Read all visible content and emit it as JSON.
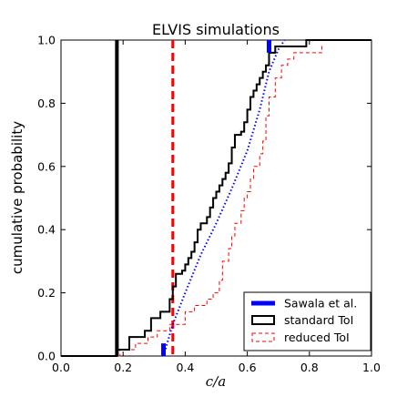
{
  "chart_data": {
    "type": "line",
    "title": "ELVIS simulations",
    "xlabel": "c/a",
    "ylabel": "cumulative probability",
    "xlim": [
      0.0,
      1.0
    ],
    "ylim": [
      0.0,
      1.0
    ],
    "xticks": [
      "0.0",
      "0.2",
      "0.4",
      "0.6",
      "0.8",
      "1.0"
    ],
    "yticks": [
      "0.0",
      "0.2",
      "0.4",
      "0.6",
      "0.8",
      "1.0"
    ],
    "grid": false,
    "legend_position": "bottom-right",
    "series": [
      {
        "name": "Sawala et al.",
        "color": "#0000ff",
        "style": "dotted",
        "points": [
          [
            0.33,
            0.0
          ],
          [
            0.36,
            0.1
          ],
          [
            0.4,
            0.2
          ],
          [
            0.45,
            0.32
          ],
          [
            0.5,
            0.42
          ],
          [
            0.55,
            0.53
          ],
          [
            0.6,
            0.65
          ],
          [
            0.64,
            0.78
          ],
          [
            0.67,
            0.9
          ],
          [
            0.7,
            0.97
          ],
          [
            0.72,
            1.0
          ]
        ]
      },
      {
        "name": "standard ToI",
        "color": "#000000",
        "style": "step-solid",
        "points": [
          [
            0.0,
            0.0
          ],
          [
            0.18,
            0.0
          ],
          [
            0.18,
            0.02
          ],
          [
            0.22,
            0.02
          ],
          [
            0.22,
            0.06
          ],
          [
            0.27,
            0.06
          ],
          [
            0.27,
            0.08
          ],
          [
            0.29,
            0.08
          ],
          [
            0.29,
            0.12
          ],
          [
            0.32,
            0.12
          ],
          [
            0.32,
            0.14
          ],
          [
            0.35,
            0.14
          ],
          [
            0.35,
            0.18
          ],
          [
            0.36,
            0.18
          ],
          [
            0.36,
            0.22
          ],
          [
            0.37,
            0.22
          ],
          [
            0.37,
            0.26
          ],
          [
            0.39,
            0.26
          ],
          [
            0.39,
            0.27
          ],
          [
            0.4,
            0.27
          ],
          [
            0.4,
            0.29
          ],
          [
            0.41,
            0.29
          ],
          [
            0.41,
            0.31
          ],
          [
            0.42,
            0.31
          ],
          [
            0.42,
            0.33
          ],
          [
            0.43,
            0.33
          ],
          [
            0.43,
            0.36
          ],
          [
            0.44,
            0.36
          ],
          [
            0.44,
            0.4
          ],
          [
            0.45,
            0.4
          ],
          [
            0.45,
            0.42
          ],
          [
            0.47,
            0.42
          ],
          [
            0.47,
            0.44
          ],
          [
            0.48,
            0.44
          ],
          [
            0.48,
            0.47
          ],
          [
            0.49,
            0.47
          ],
          [
            0.49,
            0.5
          ],
          [
            0.5,
            0.5
          ],
          [
            0.5,
            0.52
          ],
          [
            0.51,
            0.52
          ],
          [
            0.51,
            0.54
          ],
          [
            0.52,
            0.54
          ],
          [
            0.52,
            0.56
          ],
          [
            0.53,
            0.56
          ],
          [
            0.53,
            0.58
          ],
          [
            0.54,
            0.58
          ],
          [
            0.54,
            0.61
          ],
          [
            0.55,
            0.61
          ],
          [
            0.55,
            0.66
          ],
          [
            0.56,
            0.66
          ],
          [
            0.56,
            0.7
          ],
          [
            0.58,
            0.7
          ],
          [
            0.58,
            0.71
          ],
          [
            0.59,
            0.71
          ],
          [
            0.59,
            0.74
          ],
          [
            0.6,
            0.74
          ],
          [
            0.6,
            0.78
          ],
          [
            0.61,
            0.78
          ],
          [
            0.61,
            0.82
          ],
          [
            0.62,
            0.82
          ],
          [
            0.62,
            0.84
          ],
          [
            0.63,
            0.84
          ],
          [
            0.63,
            0.86
          ],
          [
            0.64,
            0.86
          ],
          [
            0.64,
            0.88
          ],
          [
            0.65,
            0.88
          ],
          [
            0.65,
            0.9
          ],
          [
            0.66,
            0.9
          ],
          [
            0.66,
            0.92
          ],
          [
            0.67,
            0.92
          ],
          [
            0.67,
            0.96
          ],
          [
            0.69,
            0.96
          ],
          [
            0.69,
            0.98
          ],
          [
            0.79,
            0.98
          ],
          [
            0.79,
            1.0
          ],
          [
            1.0,
            1.0
          ]
        ]
      },
      {
        "name": "reduced ToI",
        "color": "#ff0000",
        "style": "step-dashed",
        "points": [
          [
            0.0,
            0.0
          ],
          [
            0.19,
            0.0
          ],
          [
            0.19,
            0.02
          ],
          [
            0.24,
            0.02
          ],
          [
            0.24,
            0.04
          ],
          [
            0.28,
            0.04
          ],
          [
            0.28,
            0.06
          ],
          [
            0.31,
            0.06
          ],
          [
            0.31,
            0.08
          ],
          [
            0.35,
            0.08
          ],
          [
            0.35,
            0.1
          ],
          [
            0.4,
            0.1
          ],
          [
            0.4,
            0.14
          ],
          [
            0.43,
            0.14
          ],
          [
            0.43,
            0.16
          ],
          [
            0.47,
            0.16
          ],
          [
            0.47,
            0.18
          ],
          [
            0.49,
            0.18
          ],
          [
            0.49,
            0.2
          ],
          [
            0.51,
            0.2
          ],
          [
            0.51,
            0.24
          ],
          [
            0.52,
            0.24
          ],
          [
            0.52,
            0.3
          ],
          [
            0.54,
            0.3
          ],
          [
            0.54,
            0.34
          ],
          [
            0.55,
            0.34
          ],
          [
            0.55,
            0.38
          ],
          [
            0.56,
            0.38
          ],
          [
            0.56,
            0.42
          ],
          [
            0.58,
            0.42
          ],
          [
            0.58,
            0.46
          ],
          [
            0.59,
            0.46
          ],
          [
            0.59,
            0.5
          ],
          [
            0.6,
            0.5
          ],
          [
            0.6,
            0.52
          ],
          [
            0.61,
            0.52
          ],
          [
            0.61,
            0.56
          ],
          [
            0.62,
            0.56
          ],
          [
            0.62,
            0.6
          ],
          [
            0.64,
            0.6
          ],
          [
            0.64,
            0.64
          ],
          [
            0.65,
            0.64
          ],
          [
            0.65,
            0.68
          ],
          [
            0.66,
            0.68
          ],
          [
            0.66,
            0.76
          ],
          [
            0.67,
            0.76
          ],
          [
            0.67,
            0.82
          ],
          [
            0.69,
            0.82
          ],
          [
            0.69,
            0.88
          ],
          [
            0.71,
            0.88
          ],
          [
            0.71,
            0.92
          ],
          [
            0.73,
            0.92
          ],
          [
            0.73,
            0.94
          ],
          [
            0.75,
            0.94
          ],
          [
            0.75,
            0.96
          ],
          [
            0.84,
            0.96
          ],
          [
            0.84,
            0.98
          ],
          [
            0.85,
            0.98
          ]
        ]
      }
    ],
    "vertical_lines": [
      {
        "x": 0.18,
        "color": "#000000",
        "style": "solid",
        "width": "thick"
      },
      {
        "x": 0.36,
        "color": "#ff0000",
        "style": "dashed",
        "width": "thick"
      }
    ],
    "ticks_marks": [
      {
        "x": 0.33,
        "ymin": 0.0,
        "ymax": 0.04,
        "color": "#0000ff",
        "edge": "bottom"
      },
      {
        "x": 0.67,
        "ymin": 0.96,
        "ymax": 1.0,
        "color": "#0000ff",
        "edge": "top"
      }
    ]
  }
}
